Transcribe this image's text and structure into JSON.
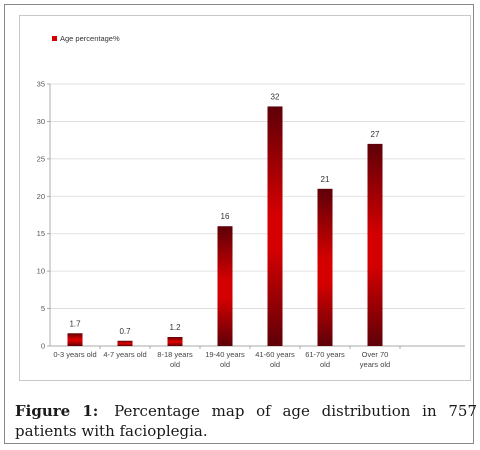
{
  "chart_data": {
    "type": "bar",
    "title": "",
    "xlabel": "",
    "ylabel": "",
    "categories": [
      [
        "0-3 years old"
      ],
      [
        "4-7 years old"
      ],
      [
        "8-18 years",
        "old"
      ],
      [
        "19-40 years",
        "old"
      ],
      [
        "41-60 years",
        "old"
      ],
      [
        "61-70 years",
        "old"
      ],
      [
        "Over 70",
        "years old"
      ]
    ],
    "series": [
      {
        "name": "Age percentage%",
        "values": [
          1.7,
          0.7,
          1.2,
          16,
          32,
          21,
          27
        ]
      }
    ],
    "ylim": [
      0,
      35
    ],
    "yticks": [
      0,
      5,
      10,
      15,
      20,
      25,
      30,
      35
    ],
    "grid": true,
    "legend": "top-left",
    "bar_color": "#d40000",
    "bar_dark_color": "#5e0008"
  },
  "caption": {
    "label": "Figure 1:",
    "text": "Percentage map of age distribution in 757 patients with facioplegia."
  }
}
